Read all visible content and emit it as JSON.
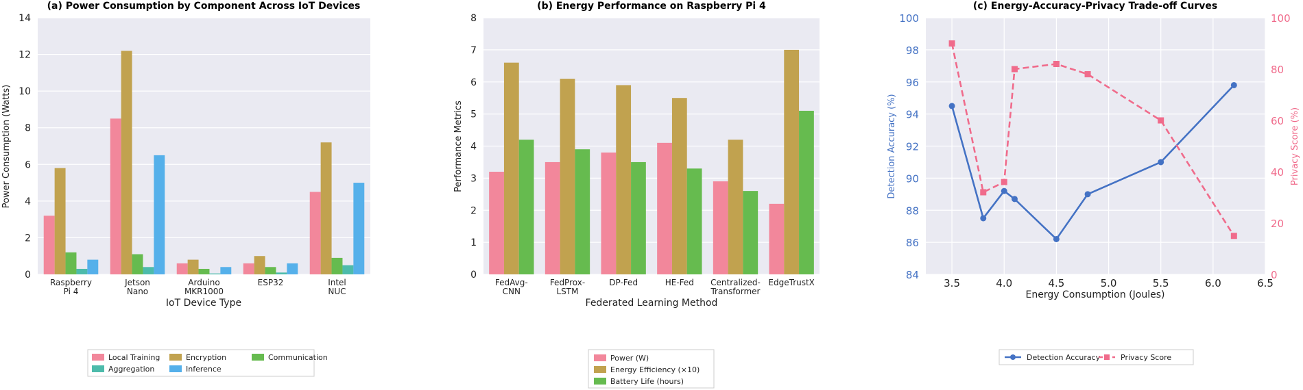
{
  "chart_data": [
    {
      "type": "bar",
      "title": "(a) Power Consumption by Component Across IoT Devices",
      "xlabel": "IoT Device Type",
      "ylabel": "Power Consumption (Watts)",
      "ylim": [
        0,
        14
      ],
      "yticks": [
        "0",
        "2",
        "4",
        "6",
        "8",
        "10",
        "12",
        "14"
      ],
      "categories": [
        [
          "Raspberry",
          "Pi 4"
        ],
        [
          "Jetson",
          "Nano"
        ],
        [
          "Arduino",
          "MKR1000"
        ],
        [
          "ESP32"
        ],
        [
          "Intel",
          "NUC"
        ]
      ],
      "series": [
        {
          "name": "Local Training",
          "color": "#f2879b",
          "values": [
            3.2,
            8.5,
            0.6,
            0.6,
            4.5
          ]
        },
        {
          "name": "Encryption",
          "color": "#c1a24f",
          "values": [
            5.8,
            12.2,
            0.8,
            1.0,
            7.2
          ]
        },
        {
          "name": "Communication",
          "color": "#66bb4f",
          "values": [
            1.2,
            1.1,
            0.3,
            0.4,
            0.9
          ]
        },
        {
          "name": "Aggregation",
          "color": "#4dbbab",
          "values": [
            0.3,
            0.4,
            0.05,
            0.1,
            0.5
          ]
        },
        {
          "name": "Inference",
          "color": "#55b0ea",
          "values": [
            0.8,
            6.5,
            0.4,
            0.6,
            5.0
          ]
        }
      ],
      "grid": true,
      "legend": "below, 3 columns"
    },
    {
      "type": "bar",
      "title": "(b) Energy Performance on Raspberry Pi 4",
      "xlabel": "Federated Learning Method",
      "ylabel": "Performance Metrics",
      "ylim": [
        0,
        8
      ],
      "yticks": [
        "0",
        "1",
        "2",
        "3",
        "4",
        "5",
        "6",
        "7",
        "8"
      ],
      "categories": [
        [
          "FedAvg-",
          "CNN"
        ],
        [
          "FedProx-",
          "LSTM"
        ],
        [
          "DP-Fed"
        ],
        [
          "HE-Fed"
        ],
        [
          "Centralized-",
          "Transformer"
        ],
        [
          "EdgeTrustX"
        ]
      ],
      "series": [
        {
          "name": "Power (W)",
          "color": "#f2879b",
          "values": [
            3.2,
            3.5,
            3.8,
            4.1,
            2.9,
            2.2
          ]
        },
        {
          "name": "Energy Efficiency (×10)",
          "color": "#c1a24f",
          "values": [
            6.6,
            6.1,
            5.9,
            5.5,
            4.2,
            7.0
          ]
        },
        {
          "name": "Battery Life (hours)",
          "color": "#66bb4f",
          "values": [
            4.2,
            3.9,
            3.5,
            3.3,
            2.6,
            5.1
          ]
        }
      ],
      "grid": true,
      "legend": "below, 1 column"
    },
    {
      "type": "line",
      "title": "(c) Energy-Accuracy-Privacy Trade-off Curves",
      "xlabel": "Energy Consumption (Joules)",
      "ylabel": "Detection Accuracy (%)",
      "ylabel_right": "Privacy Score (%)",
      "xlim": [
        3.25,
        6.5
      ],
      "ylim": [
        84,
        100
      ],
      "ylim_right": [
        0,
        100
      ],
      "xticks": [
        "3.5",
        "4.0",
        "4.5",
        "5.0",
        "5.5",
        "6.0",
        "6.5"
      ],
      "yticks": [
        "84",
        "86",
        "88",
        "90",
        "92",
        "94",
        "96",
        "98",
        "100"
      ],
      "yticks_right": [
        "0",
        "20",
        "40",
        "60",
        "80",
        "100"
      ],
      "series": [
        {
          "name": "Detection Accuracy",
          "color": "#4472c4",
          "axis": "left",
          "marker": "circle",
          "dashed": false,
          "x": [
            3.5,
            3.8,
            4.0,
            4.1,
            4.5,
            4.8,
            5.5,
            6.2
          ],
          "y": [
            94.5,
            87.5,
            89.2,
            88.7,
            86.2,
            89.0,
            91.0,
            95.8
          ]
        },
        {
          "name": "Privacy Score",
          "color": "#f06b8b",
          "axis": "right",
          "marker": "square",
          "dashed": true,
          "x": [
            3.5,
            3.8,
            4.0,
            4.1,
            4.5,
            4.8,
            5.5,
            6.2
          ],
          "y": [
            90,
            32,
            36,
            80,
            82,
            78,
            60,
            15
          ]
        }
      ],
      "grid": true,
      "legend": "below, 2 columns"
    }
  ]
}
